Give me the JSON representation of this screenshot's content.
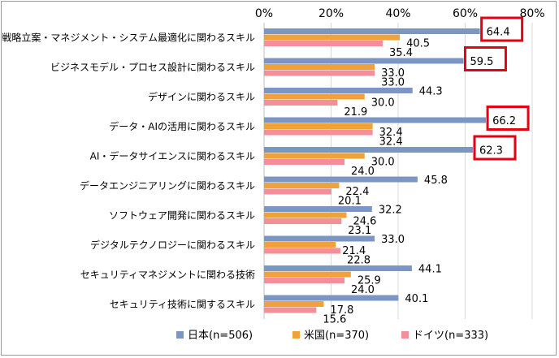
{
  "chart_data": {
    "type": "bar",
    "orientation": "horizontal",
    "categories": [
      "戦略立案・マネジメント・システム最適化に関わるスキル",
      "ビジネスモデル・プロセス設計に関わるスキル",
      "デザインに関わるスキル",
      "データ・AIの活用に関わるスキル",
      "AI・データサイエンスに関わるスキル",
      "データエンジニアリングに関わるスキル",
      "ソフトウェア開発に関わるスキル",
      "デジタルテクノロジーに関わるスキル",
      "セキュリティマネジメントに関わる技術",
      "セキュリティ技術に関するスキル"
    ],
    "series": [
      {
        "name": "日本(n=506)",
        "color": "#7b96c3",
        "values": [
          64.4,
          59.5,
          44.3,
          66.2,
          62.3,
          45.8,
          32.2,
          33.0,
          44.1,
          40.1
        ],
        "labels": [
          "64.4",
          "59.5",
          "44.3",
          "66.2",
          "62.3",
          "45.8",
          "32.2",
          "33.0",
          "44.1",
          "40.1"
        ]
      },
      {
        "name": "米国(n=370)",
        "color": "#f0a13a",
        "values": [
          40.5,
          33.0,
          30.0,
          32.4,
          30.0,
          22.4,
          24.6,
          21.4,
          25.9,
          17.8
        ],
        "labels": [
          "40.5",
          "33.0",
          "30.0",
          "32.4",
          "30.0",
          "22.4",
          "24.6",
          "21.4",
          "25.9",
          "17.8"
        ]
      },
      {
        "name": "ドイツ(n=333)",
        "color": "#f48f99",
        "values": [
          35.4,
          33.0,
          21.9,
          32.4,
          24.0,
          20.1,
          23.1,
          22.8,
          24.0,
          15.6
        ],
        "labels": [
          "35.4",
          "33.0",
          "21.9",
          "32.4",
          "24.0",
          "20.1",
          "23.1",
          "22.8",
          "24.0",
          "15.6"
        ]
      }
    ],
    "xlim": [
      0,
      80
    ],
    "xticks": [
      "0%",
      "20%",
      "40%",
      "60%",
      "80%"
    ],
    "xtick_values": [
      0,
      20,
      40,
      60,
      80
    ],
    "highlighted_categories": [
      0,
      1,
      3,
      4
    ],
    "highlight_color": "#e60012",
    "legend_position": "bottom",
    "grid": true
  }
}
